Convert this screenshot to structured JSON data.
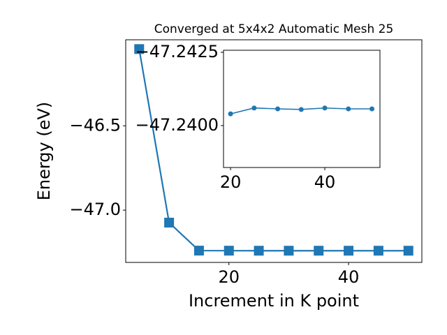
{
  "chart_data": [
    {
      "type": "line",
      "title": "Converged at 5x4x2 Automatic Mesh 25",
      "x_label": "Increment in K point",
      "y_label": "Energy (eV)",
      "x": [
        5,
        10,
        15,
        20,
        25,
        30,
        35,
        40,
        45,
        50
      ],
      "values": [
        -46.045,
        -47.074,
        -47.24,
        -47.2404,
        -47.2406,
        -47.2406,
        -47.2406,
        -47.2406,
        -47.2406,
        -47.2406
      ],
      "color": "#1f77b4",
      "marker": "square",
      "xlim": [
        2.75,
        52.25
      ],
      "ylim": [
        -47.31,
        -45.99
      ],
      "xticks": [
        20,
        40
      ],
      "yticks": [
        {
          "value": -47.0,
          "label": "−47.0"
        },
        {
          "value": -46.5,
          "label": "−46.5"
        }
      ]
    },
    {
      "type": "line",
      "x": [
        20,
        25,
        30,
        35,
        40,
        45,
        50
      ],
      "values": [
        -47.2404,
        -47.2406,
        -47.24057,
        -47.24055,
        -47.2406,
        -47.24057,
        -47.24057
      ],
      "color": "#1f77b4",
      "marker": "circle",
      "xlim": [
        18.5,
        51.7
      ],
      "ylim": [
        -47.23857,
        -47.24257
      ],
      "xticks": [
        20,
        40
      ],
      "yticks": [
        {
          "value": -47.2425,
          "label": "−47.2425"
        },
        {
          "value": -47.24,
          "label": "−47.2400"
        }
      ]
    }
  ]
}
